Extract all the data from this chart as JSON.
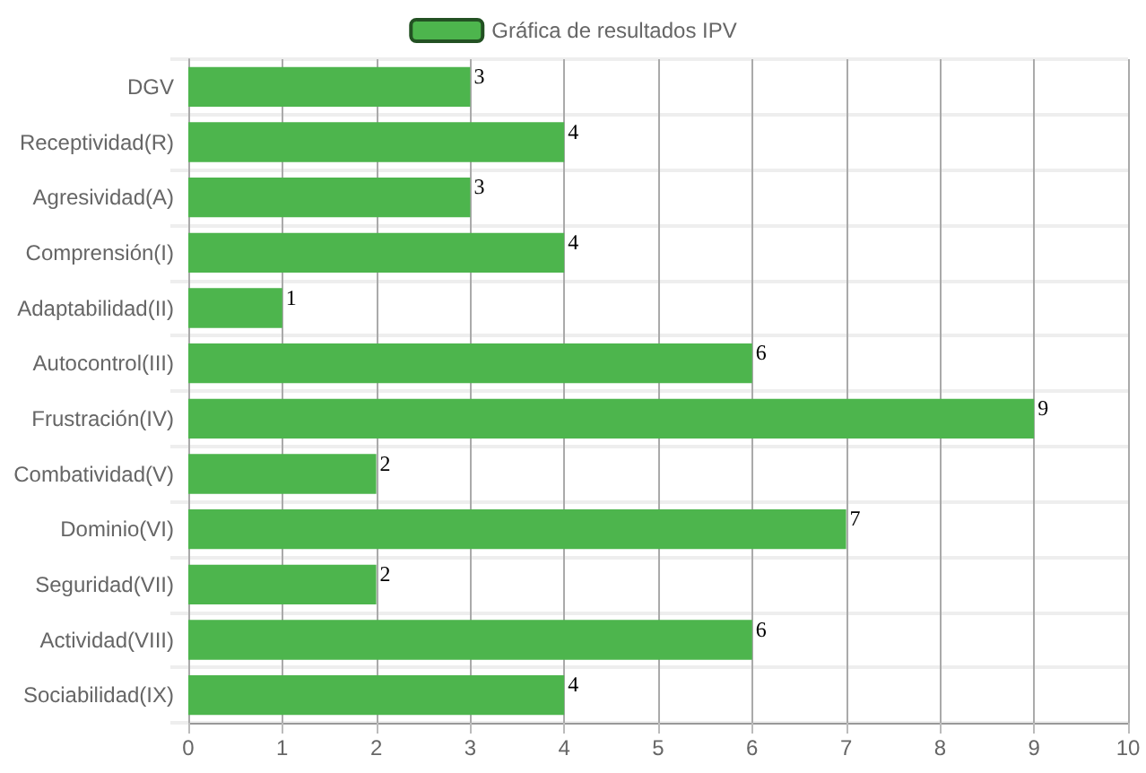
{
  "chart_data": {
    "type": "bar",
    "orientation": "horizontal",
    "categories": [
      "DGV",
      "Receptividad(R)",
      "Agresividad(A)",
      "Comprensión(I)",
      "Adaptabilidad(II)",
      "Autocontrol(III)",
      "Frustración(IV)",
      "Combatividad(V)",
      "Dominio(VI)",
      "Seguridad(VII)",
      "Actividad(VIII)",
      "Sociabilidad(IX)"
    ],
    "series": [
      {
        "name": "Gráfica de resultados IPV",
        "color": "#4db54d",
        "values": [
          3,
          4,
          3,
          4,
          1,
          6,
          9,
          2,
          7,
          2,
          6,
          4
        ]
      }
    ],
    "xlim": [
      0,
      10
    ],
    "xticks": [
      0,
      1,
      2,
      3,
      4,
      5,
      6,
      7,
      8,
      9,
      10
    ],
    "grid": true,
    "legend": "top",
    "data_labels": true
  }
}
